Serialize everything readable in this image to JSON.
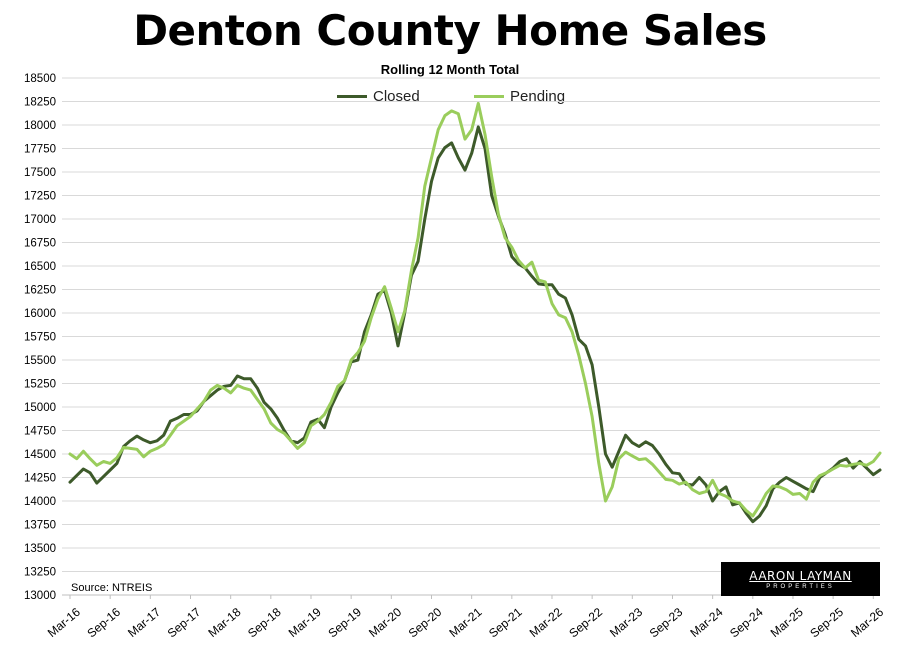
{
  "chart_data": {
    "type": "line",
    "title": "Denton County Home Sales",
    "subtitle": "Rolling 12 Month Total",
    "ylim": [
      13000,
      18500
    ],
    "y_ticks": [
      13000,
      13250,
      13500,
      13750,
      14000,
      14250,
      14500,
      14750,
      15000,
      15250,
      15500,
      15750,
      16000,
      16250,
      16500,
      16750,
      17000,
      17250,
      17500,
      17750,
      18000,
      18250,
      18500
    ],
    "x_tick_labels": [
      "Mar-16",
      "Sep-16",
      "Mar-17",
      "Sep-17",
      "Mar-18",
      "Sep-18",
      "Mar-19",
      "Sep-19",
      "Mar-20",
      "Sep-20",
      "Mar-21",
      "Sep-21",
      "Mar-22",
      "Sep-22",
      "Mar-23",
      "Sep-23",
      "Mar-24",
      "Sep-24",
      "Mar-25",
      "Sep-25",
      "Mar-26"
    ],
    "grid": true,
    "legend_position": "top",
    "series": [
      {
        "name": "Closed",
        "color": "#3d5a2a",
        "values": [
          14200,
          14270,
          14340,
          14300,
          14190,
          14260,
          14330,
          14400,
          14580,
          14640,
          14690,
          14650,
          14620,
          14640,
          14700,
          14850,
          14880,
          14920,
          14920,
          14960,
          15060,
          15120,
          15180,
          15220,
          15230,
          15330,
          15300,
          15300,
          15200,
          15050,
          14980,
          14880,
          14750,
          14640,
          14620,
          14670,
          14840,
          14870,
          14780,
          15000,
          15150,
          15280,
          15480,
          15500,
          15800,
          15980,
          16200,
          16240,
          16000,
          15650,
          16000,
          16400,
          16550,
          17000,
          17400,
          17650,
          17760,
          17810,
          17650,
          17520,
          17700,
          17980,
          17750,
          17250,
          17030,
          16840,
          16600,
          16520,
          16480,
          16390,
          16310,
          16300,
          16300,
          16200,
          16160,
          15980,
          15720,
          15650,
          15450,
          15000,
          14500,
          14360,
          14530,
          14700,
          14620,
          14580,
          14630,
          14590,
          14500,
          14390,
          14300,
          14290,
          14180,
          14170,
          14250,
          14170,
          14000,
          14100,
          14150,
          13960,
          13980,
          13870,
          13780,
          13840,
          13950,
          14130,
          14200,
          14250,
          14210,
          14170,
          14130,
          14100,
          14250,
          14300,
          14350,
          14420,
          14450,
          14350,
          14420,
          14350,
          14280,
          14330
        ]
      },
      {
        "name": "Pending",
        "color": "#9acd5c",
        "values": [
          14500,
          14450,
          14530,
          14450,
          14380,
          14420,
          14400,
          14460,
          14570,
          14560,
          14550,
          14470,
          14530,
          14560,
          14600,
          14700,
          14800,
          14850,
          14900,
          14980,
          15060,
          15180,
          15230,
          15200,
          15150,
          15230,
          15200,
          15180,
          15080,
          14980,
          14830,
          14760,
          14720,
          14640,
          14560,
          14620,
          14800,
          14850,
          14920,
          15050,
          15220,
          15280,
          15500,
          15580,
          15700,
          15950,
          16150,
          16280,
          16050,
          15800,
          16020,
          16450,
          16800,
          17350,
          17650,
          17950,
          18100,
          18150,
          18120,
          17850,
          17950,
          18230,
          17900,
          17450,
          17050,
          16800,
          16700,
          16560,
          16480,
          16540,
          16350,
          16330,
          16100,
          15980,
          15950,
          15800,
          15550,
          15250,
          14900,
          14400,
          14000,
          14150,
          14450,
          14520,
          14480,
          14440,
          14450,
          14390,
          14310,
          14230,
          14220,
          14180,
          14200,
          14120,
          14080,
          14100,
          14220,
          14080,
          14050,
          14000,
          13980,
          13900,
          13840,
          13950,
          14080,
          14160,
          14150,
          14120,
          14070,
          14080,
          14020,
          14200,
          14270,
          14300,
          14340,
          14380,
          14370,
          14390,
          14400,
          14380,
          14420,
          14510
        ]
      }
    ],
    "annotations": [
      "Source: NTREIS"
    ]
  },
  "branding": {
    "logo_text": "AARON LAYMAN",
    "logo_subtext": "PROPERTIES"
  }
}
